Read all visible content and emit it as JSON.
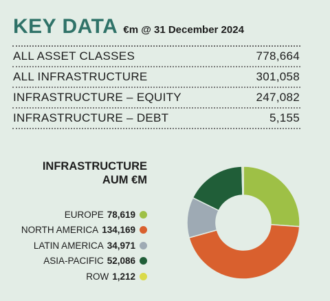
{
  "header": {
    "title": "KEY DATA",
    "subtitle": "€m @ 31 December 2024"
  },
  "key_data": [
    {
      "label": "ALL ASSET CLASSES",
      "value": "778,664"
    },
    {
      "label": "ALL INFRASTRUCTURE",
      "value": "301,058"
    },
    {
      "label": "INFRASTRUCTURE – EQUITY",
      "value": "247,082"
    },
    {
      "label": "INFRASTRUCTURE – DEBT",
      "value": "5,155"
    }
  ],
  "chart_data": {
    "type": "pie",
    "title": "INFRASTRUCTURE AUM €M",
    "title_lines": [
      "INFRASTRUCTURE",
      "AUM €M"
    ],
    "categories": [
      "EUROPE",
      "NORTH AMERICA",
      "LATIN AMERICA",
      "ASIA-PACIFIC",
      "ROW"
    ],
    "values": [
      78619,
      134169,
      34971,
      52086,
      1212
    ],
    "value_labels": [
      "78,619",
      "134,169",
      "34,971",
      "52,086",
      "1,212"
    ],
    "colors": [
      "#9ec046",
      "#d9602e",
      "#9eaab4",
      "#205e38",
      "#dada4a"
    ],
    "legend_position": "left",
    "donut": true
  }
}
